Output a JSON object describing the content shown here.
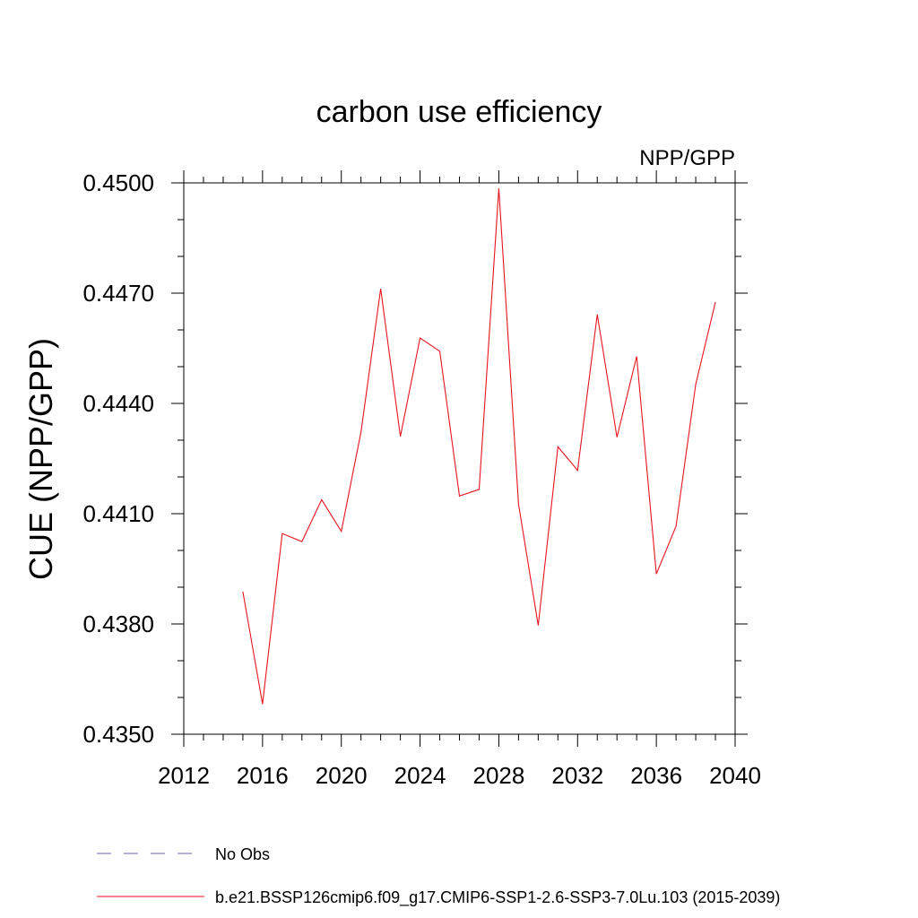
{
  "chart_data": {
    "type": "line",
    "title": "carbon use efficiency",
    "subtitle": "NPP/GPP",
    "xlabel": "",
    "ylabel": "CUE  (NPP/GPP)",
    "xlim": [
      2012,
      2040
    ],
    "ylim": [
      0.435,
      0.45
    ],
    "x_ticks": [
      "2012",
      "2016",
      "2020",
      "2024",
      "2028",
      "2032",
      "2036",
      "2040"
    ],
    "y_ticks": [
      "0.4350",
      "0.4380",
      "0.4410",
      "0.4440",
      "0.4470",
      "0.4500"
    ],
    "grid": false,
    "legend_position": "bottom-left",
    "x": [
      2015,
      2016,
      2017,
      2018,
      2019,
      2020,
      2021,
      2022,
      2023,
      2024,
      2025,
      2026,
      2027,
      2028,
      2029,
      2030,
      2031,
      2032,
      2033,
      2034,
      2035,
      2036,
      2037,
      2038,
      2039
    ],
    "series": [
      {
        "name": "b.e21.BSSP126cmip6.f09_g17.CMIP6-SSP1-2.6-SSP3-7.0Lu.103 (2015-2039)",
        "color": "#e8141e",
        "style": "solid",
        "values": [
          0.43888,
          0.43582,
          0.44046,
          0.44024,
          0.44138,
          0.44052,
          0.44322,
          0.44712,
          0.4431,
          0.44578,
          0.44542,
          0.44148,
          0.44166,
          0.44985,
          0.44126,
          0.43796,
          0.44282,
          0.44218,
          0.44642,
          0.44308,
          0.44528,
          0.43936,
          0.44066,
          0.44452,
          0.44676
        ]
      }
    ],
    "legend": [
      {
        "label": "No Obs",
        "color": "#6f5fb5",
        "style": "dashed"
      },
      {
        "label": "b.e21.BSSP126cmip6.f09_g17.CMIP6-SSP1-2.6-SSP3-7.0Lu.103 (2015-2039)",
        "color": "#e8141e",
        "style": "solid"
      }
    ]
  }
}
